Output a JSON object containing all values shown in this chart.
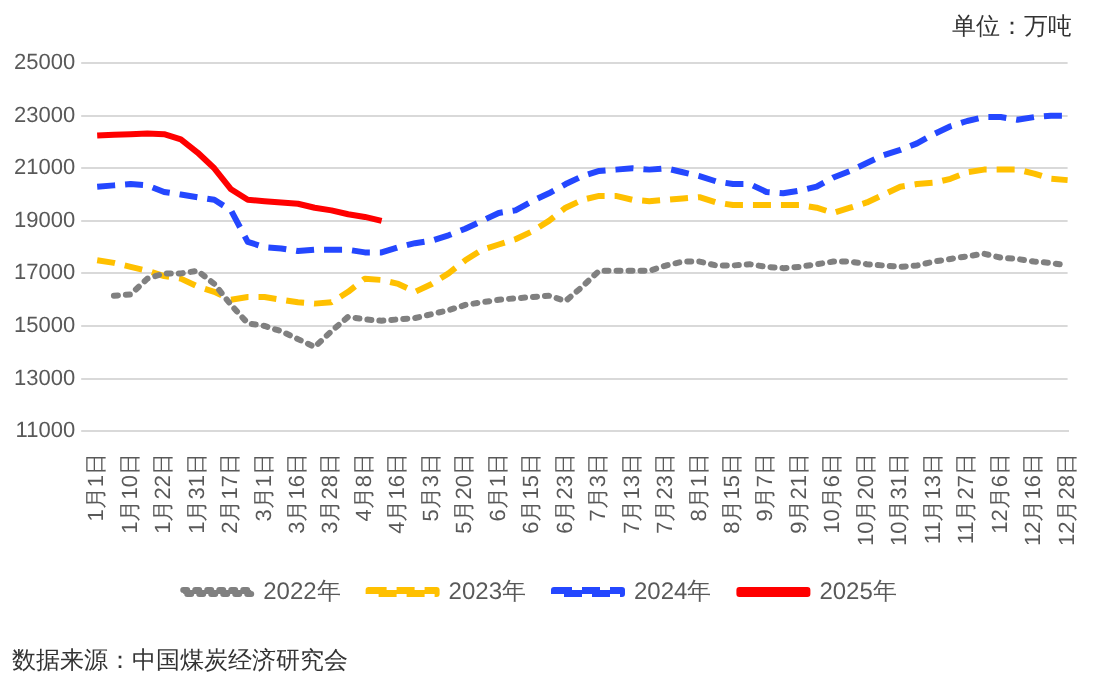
{
  "chart_data": {
    "type": "line",
    "categories": [
      "1月1日",
      null,
      "1月10日",
      null,
      "1月22日",
      null,
      "1月31日",
      null,
      "2月17日",
      null,
      "3月1日",
      null,
      "3月16日",
      null,
      "3月28日",
      null,
      "4月8日",
      null,
      "4月16日",
      null,
      "5月3日",
      null,
      "5月20日",
      null,
      "6月1日",
      null,
      "6月15日",
      null,
      "6月23日",
      null,
      "7月3日",
      null,
      "7月13日",
      null,
      "7月23日",
      null,
      "8月1日",
      null,
      "8月15日",
      null,
      "9月7日",
      null,
      "9月21日",
      null,
      "10月6日",
      null,
      "10月20日",
      null,
      "10月31日",
      null,
      "11月13日",
      null,
      "11月27日",
      null,
      "12月6日",
      null,
      "12月16日",
      null,
      "12月28日"
    ],
    "series": [
      {
        "name": "2022年",
        "color": "#808080",
        "line_style": "dotted",
        "values": [
          null,
          16150,
          16200,
          16800,
          17000,
          17000,
          17100,
          16600,
          15800,
          15100,
          15000,
          14800,
          14500,
          14200,
          14800,
          15350,
          15250,
          15200,
          15250,
          15300,
          15450,
          15600,
          15800,
          15900,
          16000,
          16050,
          16100,
          16150,
          15950,
          16500,
          17100,
          17100,
          17100,
          17100,
          17300,
          17450,
          17450,
          17300,
          17300,
          17350,
          17250,
          17200,
          17250,
          17350,
          17450,
          17450,
          17350,
          17300,
          17250,
          17300,
          17450,
          17550,
          17650,
          17750,
          17600,
          17550,
          17450,
          17400,
          17300
        ]
      },
      {
        "name": "2023年",
        "color": "#ffc000",
        "line_style": "dashed",
        "values": [
          17500,
          17400,
          17250,
          17100,
          16900,
          16800,
          16500,
          16300,
          16000,
          16100,
          16100,
          16000,
          15900,
          15850,
          15900,
          16300,
          16800,
          16750,
          16600,
          16300,
          16600,
          17000,
          17500,
          17900,
          18100,
          18300,
          18600,
          19000,
          19500,
          19800,
          19950,
          19950,
          19800,
          19750,
          19800,
          19850,
          19900,
          19700,
          19600,
          19600,
          19600,
          19600,
          19600,
          19500,
          19300,
          19500,
          19700,
          20000,
          20300,
          20400,
          20450,
          20600,
          20850,
          20950,
          20950,
          20950,
          20800,
          20600,
          20550
        ]
      },
      {
        "name": "2024年",
        "color": "#2447ff",
        "line_style": "dashed",
        "values": [
          20300,
          20350,
          20400,
          20350,
          20100,
          20000,
          19900,
          19800,
          19400,
          18200,
          18000,
          17950,
          17850,
          17900,
          17900,
          17900,
          17800,
          17800,
          18000,
          18150,
          18250,
          18450,
          18700,
          19000,
          19300,
          19400,
          19750,
          20050,
          20400,
          20700,
          20900,
          20950,
          21000,
          20950,
          21000,
          20850,
          20700,
          20500,
          20400,
          20400,
          20100,
          20050,
          20150,
          20300,
          20650,
          20900,
          21200,
          21500,
          21700,
          21950,
          22300,
          22600,
          22800,
          22950,
          22950,
          22850,
          22950,
          23000,
          23000
        ]
      },
      {
        "name": "2025年",
        "color": "#ff0000",
        "line_style": "solid",
        "values": [
          22250,
          22280,
          22300,
          22320,
          22300,
          22100,
          21600,
          21000,
          20200,
          19800,
          19750,
          19700,
          19650,
          19500,
          19400,
          19250,
          19150,
          19000,
          null,
          null,
          null,
          null,
          null,
          null,
          null,
          null,
          null,
          null,
          null,
          null,
          null,
          null,
          null,
          null,
          null,
          null,
          null,
          null,
          null,
          null,
          null,
          null,
          null,
          null,
          null,
          null,
          null,
          null,
          null,
          null,
          null,
          null,
          null,
          null,
          null,
          null,
          null,
          null,
          null
        ]
      }
    ],
    "ylim": [
      11000,
      25000
    ],
    "yticks": [
      11000,
      13000,
      15000,
      17000,
      19000,
      21000,
      23000,
      25000
    ],
    "grid": "y",
    "legend": "bottom",
    "marker": "none",
    "annotations": [
      "单位：万吨",
      "数据来源：中国煤炭经济研究会"
    ]
  }
}
